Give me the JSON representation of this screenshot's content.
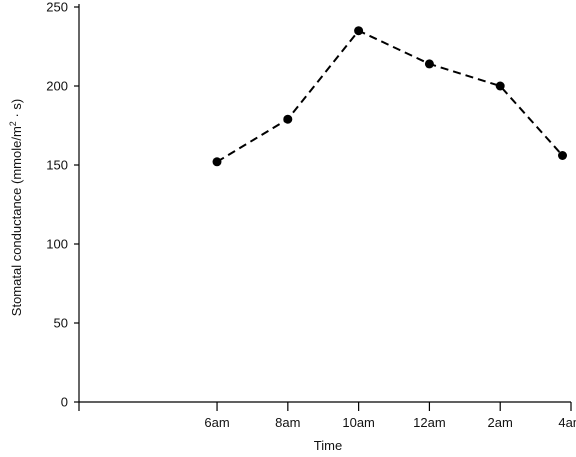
{
  "chart_data": {
    "type": "line",
    "xlabel": "Time",
    "ylabel": {
      "main": "Stomatal conductance (mmole/m",
      "sup": "2",
      "tail": " · s)"
    },
    "categories": [
      "6am",
      "8am",
      "10am",
      "12am",
      "2am",
      "4am"
    ],
    "series": [
      {
        "values": [
          152,
          179,
          235,
          214,
          200,
          156
        ],
        "x_positions": [
          0,
          1,
          2,
          3,
          4,
          4.88
        ]
      }
    ],
    "ylim": [
      0,
      250
    ],
    "yticks": [
      0,
      50,
      100,
      150,
      200,
      250
    ],
    "xlim": [
      -1.95,
      5
    ],
    "line_style": "dashed",
    "marker": "filled-circle",
    "grid": false,
    "colors": {
      "line": "#000000",
      "marker": "#000000",
      "axis": "#000000"
    }
  }
}
